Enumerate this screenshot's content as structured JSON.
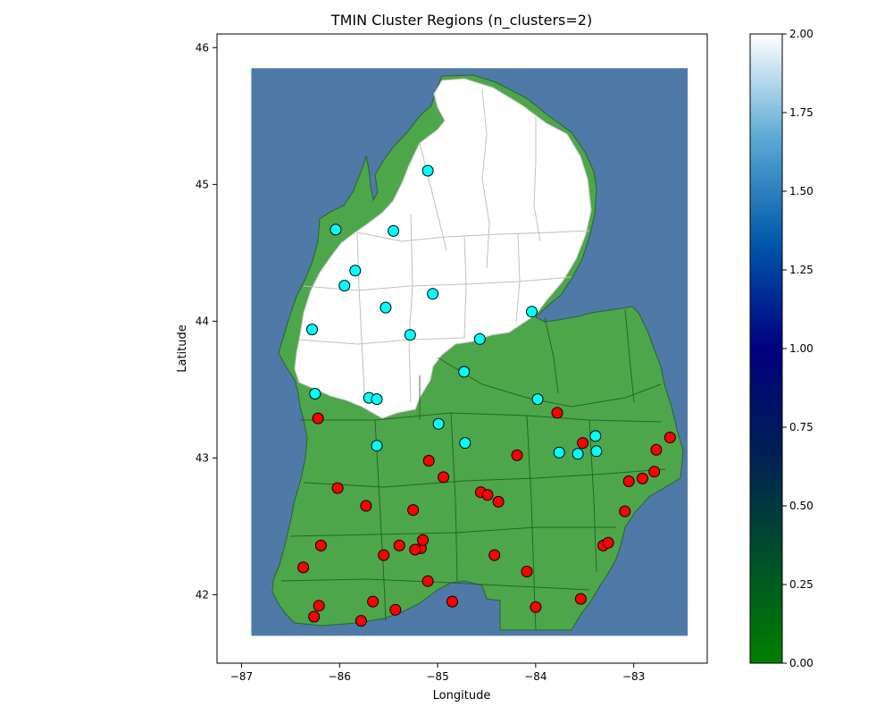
{
  "chart_data": {
    "type": "scatter",
    "title": "TMIN Cluster Regions (n_clusters=2)",
    "xlabel": "Longitude",
    "ylabel": "Latitude",
    "xlim": [
      -87.25,
      -82.25
    ],
    "ylim": [
      41.5,
      46.1
    ],
    "xticks": [
      -87,
      -86,
      -85,
      -84,
      -83
    ],
    "yticks": [
      42,
      43,
      44,
      45,
      46
    ],
    "grid": false,
    "colorbar": {
      "colormap": "ocean",
      "range": [
        0.0,
        2.0
      ],
      "ticks": [
        "0.00",
        "0.25",
        "0.50",
        "0.75",
        "1.00",
        "1.25",
        "1.50",
        "1.75",
        "2.00"
      ]
    },
    "region_extent": {
      "lon": [
        -86.9,
        -82.45
      ],
      "lat": [
        41.7,
        45.85
      ]
    },
    "colors": {
      "water": "#4f7aa7",
      "cluster0_region": "#4ea64a",
      "cluster1_region": "#ffffff",
      "cluster0_points": "#ff0000",
      "cluster1_points": "#00ffff"
    },
    "series": [
      {
        "points": [
          [
            -86.22,
            43.29
          ],
          [
            -85.09,
            42.98
          ],
          [
            -84.94,
            42.86
          ],
          [
            -86.02,
            42.78
          ],
          [
            -85.73,
            42.65
          ],
          [
            -85.25,
            42.62
          ],
          [
            -84.56,
            42.75
          ],
          [
            -84.49,
            42.73
          ],
          [
            -84.38,
            42.68
          ],
          [
            -84.19,
            43.02
          ],
          [
            -83.78,
            43.33
          ],
          [
            -83.52,
            43.11
          ],
          [
            -82.63,
            43.15
          ],
          [
            -82.77,
            43.06
          ],
          [
            -83.05,
            42.83
          ],
          [
            -82.91,
            42.85
          ],
          [
            -82.79,
            42.9
          ],
          [
            -83.09,
            42.61
          ],
          [
            -86.19,
            42.36
          ],
          [
            -85.39,
            42.36
          ],
          [
            -85.17,
            42.34
          ],
          [
            -85.23,
            42.33
          ],
          [
            -85.15,
            42.4
          ],
          [
            -85.55,
            42.29
          ],
          [
            -84.42,
            42.29
          ],
          [
            -83.31,
            42.36
          ],
          [
            -83.26,
            42.38
          ],
          [
            -86.37,
            42.2
          ],
          [
            -84.09,
            42.17
          ],
          [
            -85.1,
            42.1
          ],
          [
            -86.21,
            41.92
          ],
          [
            -85.66,
            41.95
          ],
          [
            -84.85,
            41.95
          ],
          [
            -83.54,
            41.97
          ],
          [
            -84.0,
            41.91
          ],
          [
            -86.26,
            41.84
          ],
          [
            -85.43,
            41.89
          ],
          [
            -85.78,
            41.81
          ]
        ]
      },
      {
        "points": [
          [
            -85.1,
            45.1
          ],
          [
            -86.04,
            44.67
          ],
          [
            -85.45,
            44.66
          ],
          [
            -85.84,
            44.37
          ],
          [
            -85.95,
            44.26
          ],
          [
            -85.05,
            44.2
          ],
          [
            -85.53,
            44.1
          ],
          [
            -84.04,
            44.07
          ],
          [
            -86.28,
            43.94
          ],
          [
            -85.28,
            43.9
          ],
          [
            -84.57,
            43.87
          ],
          [
            -84.73,
            43.63
          ],
          [
            -86.25,
            43.47
          ],
          [
            -85.7,
            43.44
          ],
          [
            -85.62,
            43.43
          ],
          [
            -83.98,
            43.43
          ],
          [
            -84.99,
            43.25
          ],
          [
            -83.39,
            43.16
          ],
          [
            -84.72,
            43.11
          ],
          [
            -85.62,
            43.09
          ],
          [
            -83.76,
            43.04
          ],
          [
            -83.57,
            43.03
          ],
          [
            -83.38,
            43.05
          ]
        ]
      }
    ]
  }
}
